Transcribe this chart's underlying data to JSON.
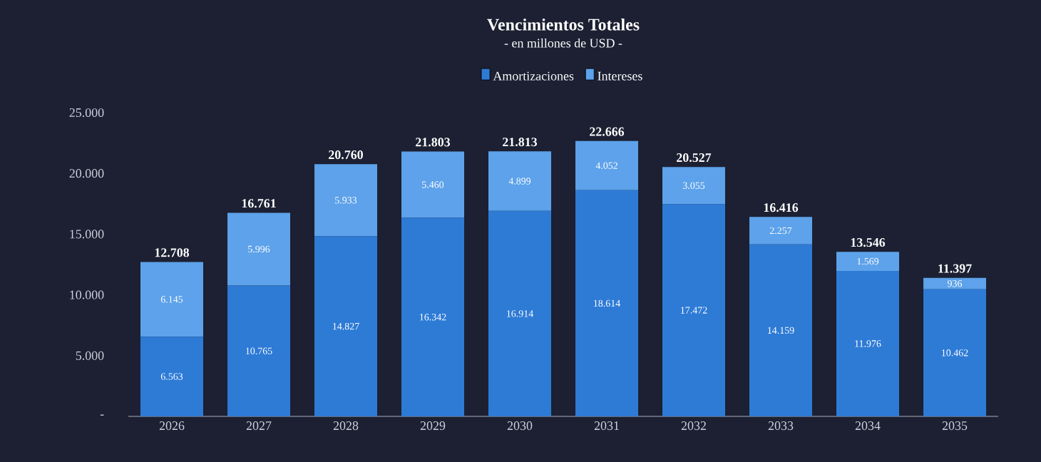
{
  "chart_data": {
    "type": "bar",
    "title": "Vencimientos Totales",
    "subtitle": "- en millones de USD -",
    "categories": [
      "2026",
      "2027",
      "2028",
      "2029",
      "2030",
      "2031",
      "2032",
      "2033",
      "2034",
      "2035"
    ],
    "series": [
      {
        "name": "Amortizaciones",
        "color": "#2e7bd6",
        "values": [
          6563,
          10765,
          14827,
          16342,
          16914,
          18614,
          17472,
          14159,
          11976,
          10462
        ],
        "value_labels": [
          "6.563",
          "10.765",
          "14.827",
          "16.342",
          "16.914",
          "18.614",
          "17.472",
          "14.159",
          "11.976",
          "10.462"
        ]
      },
      {
        "name": "Intereses",
        "color": "#5da2ea",
        "values": [
          6145,
          5996,
          5933,
          5460,
          4899,
          4052,
          3055,
          2257,
          1569,
          936
        ],
        "value_labels": [
          "6.145",
          "5.996",
          "5.933",
          "5.460",
          "4.899",
          "4.052",
          "3.055",
          "2.257",
          "1.569",
          "936"
        ]
      }
    ],
    "stacked": true,
    "totals": [
      "12.708",
      "16.761",
      "20.760",
      "21.803",
      "21.813",
      "22.666",
      "20.527",
      "16.416",
      "13.546",
      "11.397"
    ],
    "ylim": [
      0,
      25000
    ],
    "yticks": [
      {
        "value": 0,
        "label": "-"
      },
      {
        "value": 5000,
        "label": "5.000"
      },
      {
        "value": 10000,
        "label": "10.000"
      },
      {
        "value": 15000,
        "label": "15.000"
      },
      {
        "value": 20000,
        "label": "20.000"
      },
      {
        "value": 25000,
        "label": "25.000"
      }
    ],
    "legend": "top"
  }
}
